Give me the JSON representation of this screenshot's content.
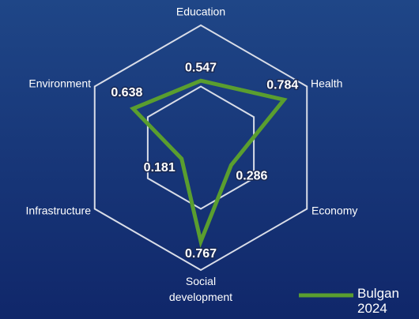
{
  "chart_data": {
    "type": "radar",
    "categories": [
      "Education",
      "Health",
      "Economy",
      "Social development",
      "Infrastructure",
      "Environment"
    ],
    "series": [
      {
        "name": "Bulgan 2024",
        "color": "#5a9e2f",
        "values": [
          0.547,
          0.784,
          0.286,
          0.767,
          0.181,
          0.638
        ]
      }
    ],
    "rlim": [
      0,
      1
    ],
    "rticks": [
      0.5,
      1
    ],
    "grid": true
  }
}
